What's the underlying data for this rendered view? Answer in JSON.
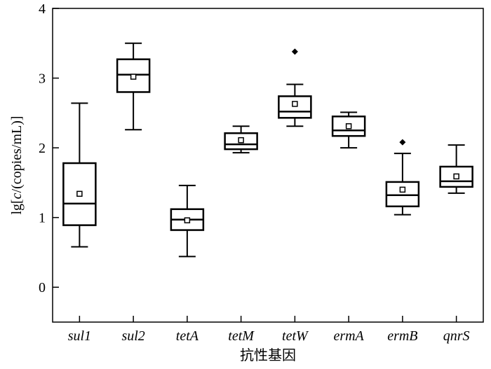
{
  "chart_data": {
    "type": "box",
    "xlabel": "抗性基因",
    "ylabel": {
      "prefix": "lg[",
      "var": "c",
      "suffix": "/(copies/mL)]"
    },
    "ylim": [
      -0.5,
      4
    ],
    "yticks": [
      0,
      1,
      2,
      3,
      4
    ],
    "grid": false,
    "categories": [
      "sul1",
      "sul2",
      "tetA",
      "tetM",
      "tetW",
      "ermA",
      "ermB",
      "qnrS"
    ],
    "boxes": [
      {
        "name": "sul1",
        "min": 0.58,
        "q1": 0.89,
        "median": 1.2,
        "q3": 1.78,
        "max": 2.64,
        "mean": 1.34,
        "outliers": []
      },
      {
        "name": "sul2",
        "min": 2.26,
        "q1": 2.8,
        "median": 3.05,
        "q3": 3.27,
        "max": 3.5,
        "mean": 3.02,
        "outliers": []
      },
      {
        "name": "tetA",
        "min": 0.44,
        "q1": 0.82,
        "median": 0.97,
        "q3": 1.12,
        "max": 1.46,
        "mean": 0.96,
        "outliers": []
      },
      {
        "name": "tetM",
        "min": 1.93,
        "q1": 1.98,
        "median": 2.05,
        "q3": 2.21,
        "max": 2.31,
        "mean": 2.11,
        "outliers": []
      },
      {
        "name": "tetW",
        "min": 2.31,
        "q1": 2.43,
        "median": 2.52,
        "q3": 2.74,
        "max": 2.91,
        "mean": 2.63,
        "outliers": [
          3.38
        ]
      },
      {
        "name": "ermA",
        "min": 2.0,
        "q1": 2.17,
        "median": 2.25,
        "q3": 2.45,
        "max": 2.51,
        "mean": 2.31,
        "outliers": []
      },
      {
        "name": "ermB",
        "min": 1.04,
        "q1": 1.16,
        "median": 1.32,
        "q3": 1.51,
        "max": 1.92,
        "mean": 1.4,
        "outliers": [
          2.08
        ]
      },
      {
        "name": "qnrS",
        "min": 1.35,
        "q1": 1.44,
        "median": 1.52,
        "q3": 1.73,
        "max": 2.04,
        "mean": 1.59,
        "outliers": []
      }
    ]
  }
}
